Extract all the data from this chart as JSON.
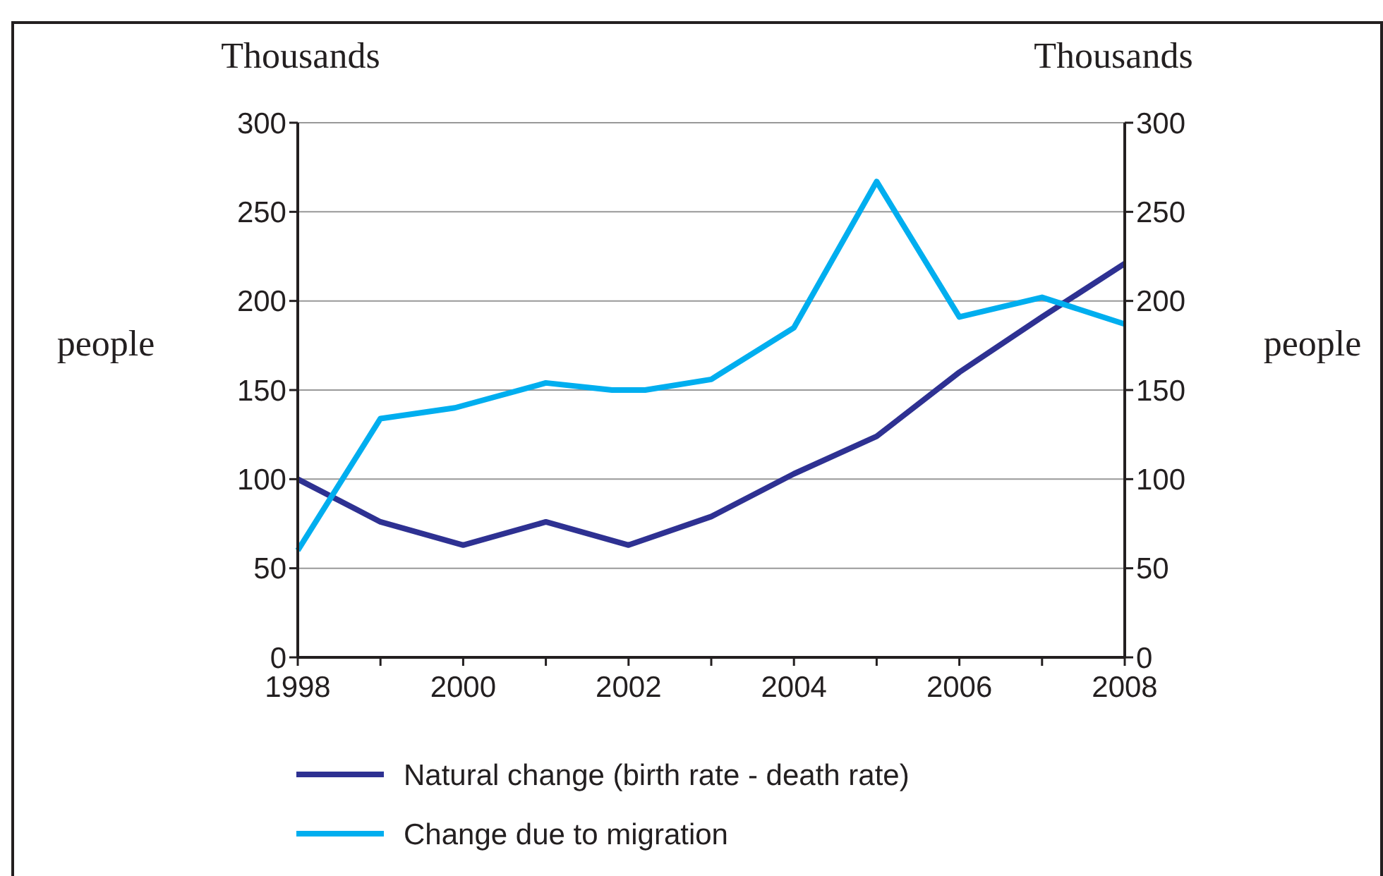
{
  "chart_data": {
    "type": "line",
    "ylabel": "people",
    "y2label": "people",
    "annotations": [
      "Thousands",
      "Thousands"
    ],
    "x": [
      1998,
      1999,
      2000,
      2001,
      2002,
      2003,
      2004,
      2005,
      2006,
      2007,
      2008
    ],
    "xlim": [
      1998,
      2008
    ],
    "xticks": [
      1998,
      2000,
      2002,
      2004,
      2006,
      2008
    ],
    "ylim": [
      0,
      300
    ],
    "yticks": [
      0,
      50,
      100,
      150,
      200,
      250,
      300
    ],
    "y2lim": [
      0,
      300
    ],
    "y2ticks": [
      0,
      50,
      100,
      150,
      200,
      250,
      300
    ],
    "grid": "y",
    "legend": "bottom",
    "marker": "none",
    "line_style": "solid",
    "series": [
      {
        "name": "Natural change  (birth rate - death rate)",
        "color": "#2e3192",
        "values": [
          100,
          76,
          63,
          76,
          63,
          79,
          103,
          124,
          160,
          191,
          221
        ]
      },
      {
        "name": "Change due to migration",
        "color": "#00aeef",
        "x": [
          1998,
          1999,
          1999.9,
          2001,
          2001.8,
          2002.2,
          2003,
          2004,
          2005,
          2006,
          2007,
          2008
        ],
        "values": [
          60,
          134,
          140,
          154,
          150,
          150,
          156,
          185,
          267,
          191,
          202,
          187
        ]
      }
    ]
  }
}
